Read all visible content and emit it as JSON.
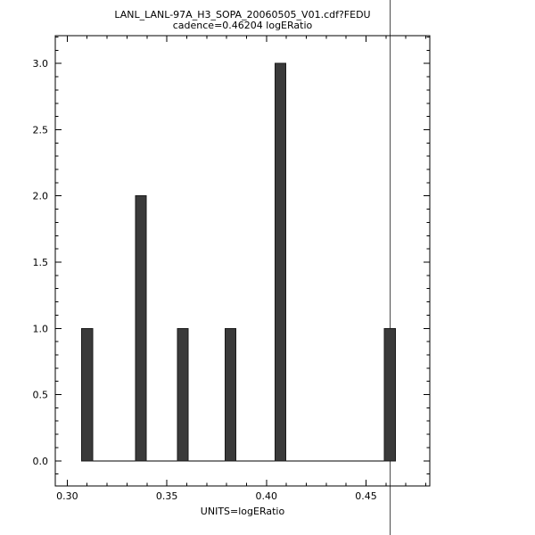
{
  "chart_data": {
    "type": "bar",
    "title": "LANL_LANL-97A_H3_SOPA_20060505_V01.cdf?FEDU",
    "subtitle": "cadence=0.46204 logERatio",
    "xlabel": "UNITS=logERatio",
    "ylabel": "",
    "bars": [
      {
        "x": 0.31,
        "height": 1
      },
      {
        "x": 0.337,
        "height": 2
      },
      {
        "x": 0.358,
        "height": 1
      },
      {
        "x": 0.382,
        "height": 1
      },
      {
        "x": 0.407,
        "height": 3
      },
      {
        "x": 0.462,
        "height": 1
      }
    ],
    "bar_width_data_units": 0.0055,
    "vline_x": 0.46204,
    "xlim": [
      0.294,
      0.482
    ],
    "ylim": [
      -0.19,
      3.21
    ],
    "x_ticks": [
      {
        "value": 0.3,
        "label": "0.30"
      },
      {
        "value": 0.35,
        "label": "0.35"
      },
      {
        "value": 0.4,
        "label": "0.40"
      },
      {
        "value": 0.45,
        "label": "0.45"
      }
    ],
    "y_ticks": [
      {
        "value": 0.0,
        "label": "0.0"
      },
      {
        "value": 0.5,
        "label": "0.5"
      },
      {
        "value": 1.0,
        "label": "1.0"
      },
      {
        "value": 1.5,
        "label": "1.5"
      },
      {
        "value": 2.0,
        "label": "2.0"
      },
      {
        "value": 2.5,
        "label": "2.5"
      },
      {
        "value": 3.0,
        "label": "3.0"
      }
    ],
    "x_minor_step": 0.01,
    "y_minor_step": 0.1,
    "grid": false,
    "legend": null,
    "colors": {
      "bar": "#3a3a3a",
      "bar_edge": "#1a1a1a",
      "axis": "#000000",
      "vline": "#4a4a4a",
      "text": "#000000",
      "background": "#ffffff"
    }
  }
}
